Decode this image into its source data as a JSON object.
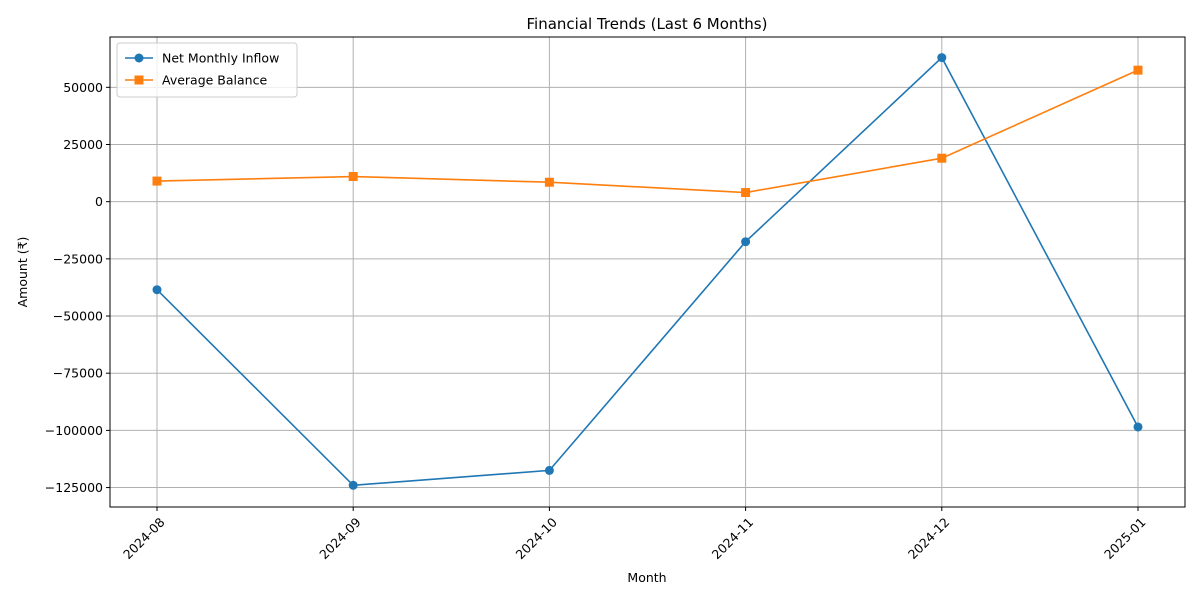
{
  "chart_data": {
    "type": "line",
    "title": "Financial Trends (Last 6 Months)",
    "xlabel": "Month",
    "ylabel": "Amount (₹)",
    "categories": [
      "2024-08",
      "2024-09",
      "2024-10",
      "2024-11",
      "2024-12",
      "2025-01"
    ],
    "yticks": [
      -125000,
      -100000,
      -75000,
      -50000,
      -25000,
      0,
      25000,
      50000
    ],
    "ylim": [
      -133500,
      72000
    ],
    "grid": true,
    "legend_position": "top-left",
    "series": [
      {
        "name": "Net Monthly Inflow",
        "color": "#1f77b4",
        "marker": "circle",
        "values": [
          -38500,
          -124000,
          -117500,
          -17500,
          63000,
          -98500
        ]
      },
      {
        "name": "Average Balance",
        "color": "#ff7f0e",
        "marker": "square",
        "values": [
          9000,
          11000,
          8500,
          4000,
          19000,
          57500
        ]
      }
    ]
  }
}
